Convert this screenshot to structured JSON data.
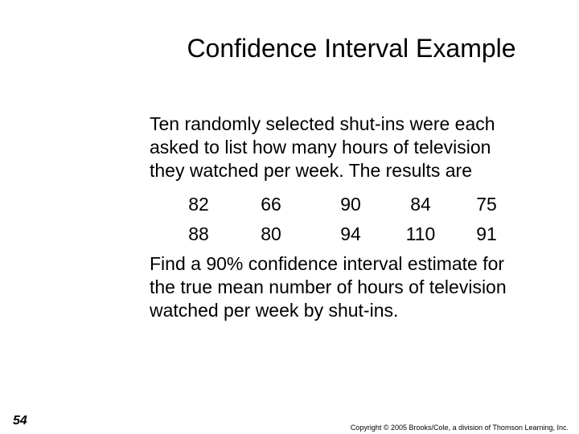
{
  "slide": {
    "title": "Confidence Interval Example",
    "intro_lines": [
      "Ten randomly selected shut-ins were each",
      "asked to list how many hours of television",
      "they watched per week.  The results are"
    ],
    "data_rows": [
      [
        "82",
        "66",
        "90",
        "84",
        "75"
      ],
      [
        "88",
        "80",
        "94",
        "110",
        "91"
      ]
    ],
    "question_lines": [
      "Find a 90% confidence interval estimate for",
      "the true mean number of hours of television",
      "watched per week by shut-ins."
    ],
    "page_number": "54",
    "copyright": "Copyright © 2005 Brooks/Cole, a division of Thomson Learning, Inc."
  }
}
